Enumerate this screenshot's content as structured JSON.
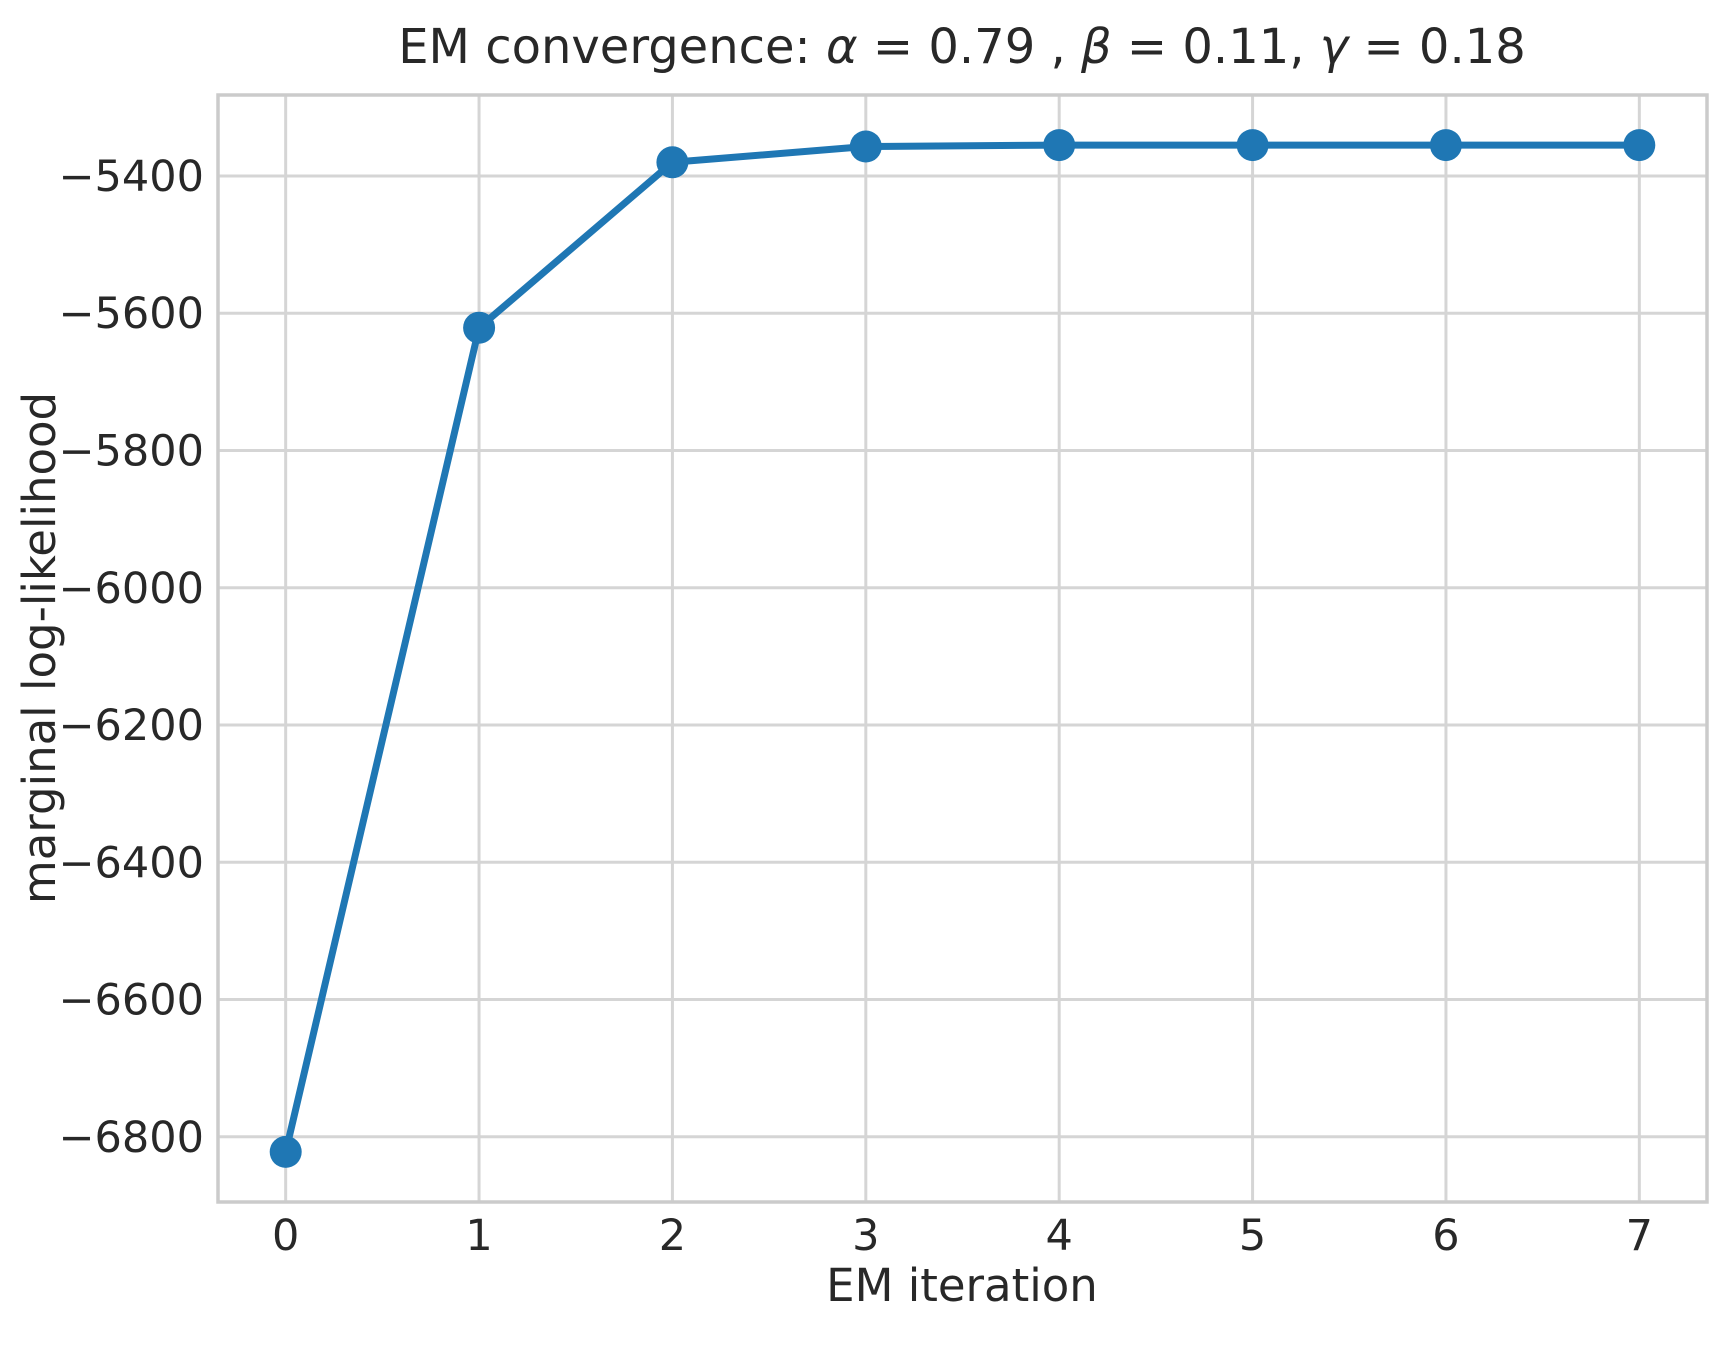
{
  "figure": {
    "background": "#ffffff"
  },
  "chart_data": {
    "type": "line",
    "title": "EM convergence: α = 0.79 , β = 0.11, γ = 0.18",
    "title_params": {
      "alpha": 0.79,
      "beta": 0.11,
      "gamma": 0.18
    },
    "xlabel": "EM iteration",
    "ylabel": "marginal log-likelihood",
    "x": [
      0,
      1,
      2,
      3,
      4,
      5,
      6,
      7
    ],
    "y": [
      -6822,
      -5621,
      -5380,
      -5357,
      -5355,
      -5355,
      -5355,
      -5355
    ],
    "xlim": [
      -0.35,
      7.35
    ],
    "ylim": [
      -6895,
      -5282
    ],
    "xtick_values": [
      0,
      1,
      2,
      3,
      4,
      5,
      6,
      7
    ],
    "xtick_labels": [
      "0",
      "1",
      "2",
      "3",
      "4",
      "5",
      "6",
      "7"
    ],
    "ytick_values": [
      -6800,
      -6600,
      -6400,
      -6200,
      -6000,
      -5800,
      -5600,
      -5400
    ],
    "ytick_labels": [
      "−6800",
      "−6600",
      "−6400",
      "−6200",
      "−6000",
      "−5800",
      "−5600",
      "−5400"
    ],
    "grid": true,
    "legend_position": "none",
    "style": {
      "line_color": "#1f77b4",
      "marker": "circle",
      "marker_color": "#1f77b4",
      "grid_color": "#d5d5d5",
      "spine_color": "#cbcbcb",
      "text_color": "#282828",
      "plot_background": "#ffffff"
    }
  }
}
